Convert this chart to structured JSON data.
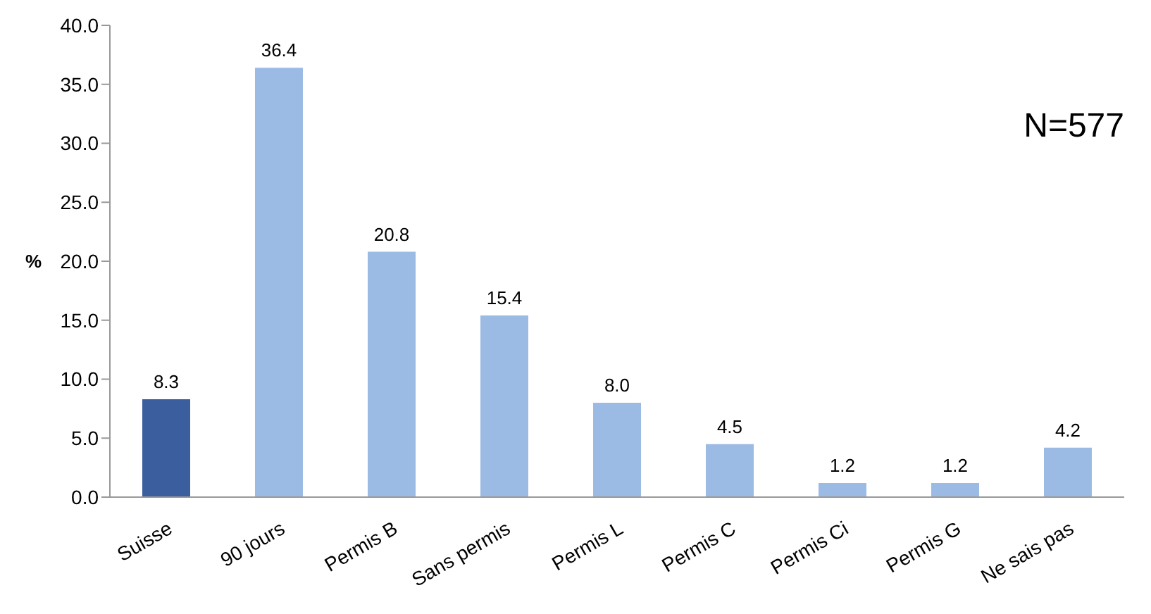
{
  "chart_data": {
    "type": "bar",
    "ylabel": "%",
    "categories": [
      "Suisse",
      "90 jours",
      "Permis B",
      "Sans permis",
      "Permis L",
      "Permis C",
      "Permis Ci",
      "Permis G",
      "Ne sais pas"
    ],
    "values": [
      8.3,
      36.4,
      20.8,
      15.4,
      8.0,
      4.5,
      1.2,
      1.2,
      4.2
    ],
    "colors": [
      "#3b5f9e",
      "#9cbbe4",
      "#9cbbe4",
      "#9cbbe4",
      "#9cbbe4",
      "#9cbbe4",
      "#9cbbe4",
      "#9cbbe4",
      "#9cbbe4"
    ],
    "value_labels": [
      "8.3",
      "36.4",
      "20.8",
      "15.4",
      "8.0",
      "4.5",
      "1.2",
      "1.2",
      "4.2"
    ],
    "ylim": [
      0,
      40
    ],
    "yticks": [
      {
        "value": 0,
        "label": "0.0"
      },
      {
        "value": 5,
        "label": "5.0"
      },
      {
        "value": 10,
        "label": "10.0"
      },
      {
        "value": 15,
        "label": "15.0"
      },
      {
        "value": 20,
        "label": "20.0"
      },
      {
        "value": 25,
        "label": "25.0"
      },
      {
        "value": 30,
        "label": "30.0"
      },
      {
        "value": 35,
        "label": "35.0"
      },
      {
        "value": 40,
        "label": "40.0"
      }
    ],
    "grid": false,
    "annotations": [
      "N=577"
    ]
  }
}
